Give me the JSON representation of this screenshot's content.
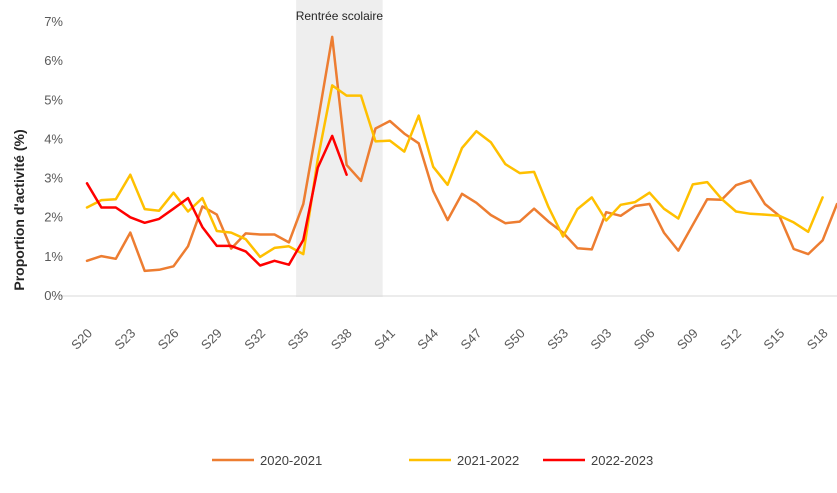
{
  "chart_data": {
    "type": "line",
    "title": "",
    "xlabel": "",
    "ylabel": "Proportion d'activité (%)",
    "ylim": [
      0,
      7
    ],
    "yticks": [
      "0%",
      "1%",
      "2%",
      "3%",
      "4%",
      "5%",
      "6%",
      "7%"
    ],
    "grid": false,
    "legend_position": "bottom",
    "x_tick_labels": [
      "S20",
      "S23",
      "S26",
      "S29",
      "S32",
      "S35",
      "S38",
      "S41",
      "S44",
      "S47",
      "S50",
      "S53",
      "S03",
      "S06",
      "S09",
      "S12",
      "S15",
      "S18"
    ],
    "annotation": {
      "label": "Rentrée scolaire",
      "x_start": 15,
      "x_end": 20,
      "shade_color": "#EEEEEE"
    },
    "series": [
      {
        "name": "2020-2021",
        "color": "#ED7D31",
        "values": [
          0.9,
          1.02,
          0.95,
          1.62,
          0.64,
          0.67,
          0.76,
          1.27,
          2.29,
          2.08,
          1.21,
          1.6,
          1.57,
          1.57,
          1.37,
          2.35,
          4.45,
          6.62,
          3.35,
          2.94,
          4.28,
          4.47,
          4.15,
          3.9,
          2.68,
          1.94,
          2.61,
          2.38,
          2.07,
          1.86,
          1.9,
          2.23,
          1.9,
          1.62,
          1.22,
          1.19,
          2.14,
          2.05,
          2.3,
          2.35,
          1.62,
          1.16,
          1.82,
          2.47,
          2.46,
          2.83,
          2.95,
          2.35,
          2.05,
          1.2,
          1.07,
          1.42,
          2.35
        ]
      },
      {
        "name": "2021-2022",
        "color": "#FFC000",
        "values": [
          2.26,
          2.45,
          2.47,
          3.1,
          2.22,
          2.18,
          2.64,
          2.16,
          2.5,
          1.66,
          1.62,
          1.45,
          1.0,
          1.23,
          1.27,
          1.07,
          3.5,
          5.38,
          5.12,
          5.12,
          3.95,
          3.97,
          3.69,
          4.61,
          3.3,
          2.84,
          3.78,
          4.21,
          3.93,
          3.37,
          3.14,
          3.17,
          2.27,
          1.52,
          2.22,
          2.52,
          1.93,
          2.33,
          2.4,
          2.64,
          2.23,
          1.98,
          2.85,
          2.91,
          2.48,
          2.16,
          2.1,
          2.08,
          2.05,
          1.88,
          1.64,
          2.52
        ]
      },
      {
        "name": "2022-2023",
        "color": "#FF0000",
        "values": [
          2.88,
          2.26,
          2.26,
          2.01,
          1.87,
          1.97,
          2.23,
          2.5,
          1.76,
          1.28,
          1.28,
          1.14,
          0.78,
          0.9,
          0.8,
          1.43,
          3.28,
          4.09,
          3.1
        ]
      }
    ]
  }
}
